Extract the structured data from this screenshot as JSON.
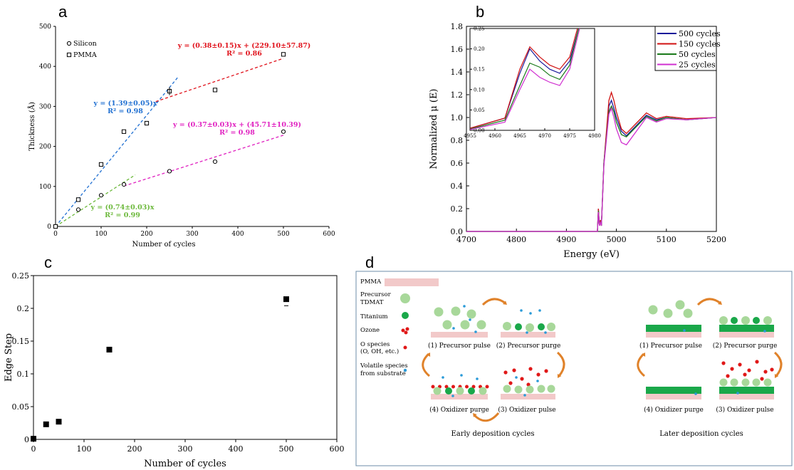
{
  "panel_labels": {
    "a": "a",
    "b": "b",
    "c": "c",
    "d": "d"
  },
  "chart_data": [
    {
      "panel": "a",
      "type": "scatter",
      "xlabel": "Number of cycles",
      "ylabel": "Thickness (Å)",
      "xlim": [
        0,
        600
      ],
      "ylim": [
        0,
        500
      ],
      "xticks": [
        0,
        100,
        200,
        300,
        400,
        500,
        600
      ],
      "yticks": [
        0,
        100,
        200,
        300,
        400,
        500
      ],
      "legend": {
        "placement": "top-left",
        "entries": [
          "Silicon",
          "PMMA"
        ]
      },
      "series": [
        {
          "name": "Silicon",
          "marker": "circle",
          "x": [
            0,
            50,
            100,
            150,
            250,
            350,
            500
          ],
          "y": [
            0,
            42,
            78,
            105,
            138,
            162,
            237
          ]
        },
        {
          "name": "PMMA",
          "marker": "square",
          "x": [
            0,
            50,
            100,
            150,
            200,
            250,
            350,
            500
          ],
          "y": [
            0,
            67,
            155,
            237,
            258,
            338,
            341,
            430
          ]
        }
      ],
      "fits": [
        {
          "label": "y = (1.39±0.05)x",
          "r2": "R² = 0.98",
          "color": "#1f6fd1",
          "x": [
            0,
            270
          ],
          "y": [
            0,
            375
          ]
        },
        {
          "label": "y = (0.38±0.15)x + (229.10±57.87)",
          "r2": "R² = 0.86",
          "color": "#e0101a",
          "x": [
            220,
            500
          ],
          "y": [
            312,
            420
          ]
        },
        {
          "label": "y = (0.37±0.03)x + (45.71±10.39)",
          "r2": "R² = 0.98",
          "color": "#e020c0",
          "x": [
            150,
            500
          ],
          "y": [
            101,
            228
          ]
        },
        {
          "label": "y = (0.74±0.03)x",
          "r2": "R² = 0.99",
          "color": "#6bb83a",
          "x": [
            0,
            175
          ],
          "y": [
            0,
            129
          ]
        }
      ]
    },
    {
      "panel": "b",
      "type": "line",
      "xlabel": "Energy (eV)",
      "ylabel": "Normalized μ (E)",
      "xlim": [
        4700,
        5200
      ],
      "ylim": [
        0,
        1.8
      ],
      "xticks": [
        4700,
        4800,
        4900,
        5000,
        5100,
        5200
      ],
      "yticks": [
        0.0,
        0.2,
        0.4,
        0.6,
        0.8,
        1.0,
        1.2,
        1.4,
        1.6,
        1.8
      ],
      "legend": {
        "placement": "top-right"
      },
      "series": [
        {
          "name": "500 cycles",
          "color": "#1a1a9a",
          "x": [
            4700,
            4950,
            4962,
            4964,
            4966,
            4968,
            4970,
            4975,
            4985,
            4990,
            4995,
            5000,
            5010,
            5020,
            5040,
            5060,
            5080,
            5100,
            5140,
            5200
          ],
          "y": [
            0,
            0,
            0,
            0.2,
            0.05,
            0.1,
            0.05,
            0.6,
            1.1,
            1.15,
            1.08,
            1.0,
            0.88,
            0.84,
            0.93,
            1.02,
            0.98,
            1.0,
            0.98,
            1.0
          ]
        },
        {
          "name": "150 cycles",
          "color": "#d01010",
          "x": [
            4700,
            4950,
            4962,
            4964,
            4966,
            4968,
            4970,
            4975,
            4985,
            4990,
            4995,
            5000,
            5010,
            5020,
            5040,
            5060,
            5080,
            5100,
            5140,
            5200
          ],
          "y": [
            0,
            0,
            0,
            0.2,
            0.05,
            0.1,
            0.05,
            0.6,
            1.15,
            1.22,
            1.15,
            1.05,
            0.9,
            0.86,
            0.95,
            1.04,
            0.99,
            1.01,
            0.99,
            1.0
          ]
        },
        {
          "name": "50 cycles",
          "color": "#1a7a1a",
          "x": [
            4700,
            4950,
            4962,
            4964,
            4966,
            4968,
            4970,
            4975,
            4985,
            4990,
            4995,
            5000,
            5010,
            5020,
            5040,
            5060,
            5080,
            5100,
            5140,
            5200
          ],
          "y": [
            0,
            0,
            0,
            0.18,
            0.05,
            0.08,
            0.05,
            0.6,
            1.05,
            1.1,
            1.05,
            0.96,
            0.85,
            0.83,
            0.92,
            1.01,
            0.97,
            1.0,
            0.98,
            1.0
          ]
        },
        {
          "name": "25 cycles",
          "color": "#d030d0",
          "x": [
            4700,
            4950,
            4962,
            4964,
            4966,
            4968,
            4970,
            4975,
            4985,
            4990,
            4995,
            5000,
            5010,
            5020,
            5040,
            5060,
            5080,
            5100,
            5140,
            5200
          ],
          "y": [
            0,
            0,
            0,
            0.17,
            0.05,
            0.08,
            0.05,
            0.58,
            1.03,
            1.08,
            1.0,
            0.9,
            0.78,
            0.76,
            0.88,
            1.0,
            0.96,
            0.99,
            0.98,
            1.0
          ]
        }
      ],
      "inset": {
        "xlim": [
          4955,
          4980
        ],
        "ylim": [
          0,
          0.25
        ],
        "xticks": [
          4955,
          4960,
          4965,
          4970,
          4975,
          4980
        ],
        "yticks": [
          0.0,
          0.05,
          0.1,
          0.15,
          0.2,
          0.25
        ],
        "series": [
          {
            "name": "500 cycles",
            "x": [
              4955,
              4962,
              4965,
              4967,
              4969,
              4971,
              4973,
              4975,
              4977
            ],
            "y": [
              0.005,
              0.03,
              0.14,
              0.2,
              0.17,
              0.15,
              0.14,
              0.17,
              0.26
            ]
          },
          {
            "name": "150 cycles",
            "x": [
              4955,
              4962,
              4965,
              4967,
              4969,
              4971,
              4973,
              4975,
              4977
            ],
            "y": [
              0.005,
              0.03,
              0.15,
              0.205,
              0.18,
              0.16,
              0.15,
              0.18,
              0.27
            ]
          },
          {
            "name": "50 cycles",
            "x": [
              4955,
              4962,
              4965,
              4967,
              4969,
              4971,
              4973,
              4975,
              4977
            ],
            "y": [
              0.003,
              0.025,
              0.11,
              0.165,
              0.155,
              0.135,
              0.125,
              0.16,
              0.26
            ]
          },
          {
            "name": "25 cycles",
            "x": [
              4955,
              4962,
              4965,
              4967,
              4969,
              4971,
              4973,
              4975,
              4977
            ],
            "y": [
              0.002,
              0.02,
              0.1,
              0.15,
              0.13,
              0.118,
              0.11,
              0.15,
              0.25
            ]
          }
        ]
      }
    },
    {
      "panel": "c",
      "type": "scatter",
      "xlabel": "Number of cycles",
      "ylabel": "Edge Step",
      "xlim": [
        0,
        600
      ],
      "ylim": [
        0,
        0.25
      ],
      "xticks": [
        0,
        100,
        200,
        300,
        400,
        500,
        600
      ],
      "yticks": [
        0,
        0.05,
        0.1,
        0.15,
        0.2,
        0.25
      ],
      "ytick_labels": [
        "0",
        "0.05",
        "0.1",
        "0.15",
        "0.2",
        "0.25"
      ],
      "series": [
        {
          "x": [
            0,
            25,
            50,
            150,
            500
          ],
          "y": [
            0.001,
            0.023,
            0.027,
            0.137,
            0.214
          ]
        }
      ]
    }
  ],
  "diagram": {
    "legend": {
      "pmma": "PMMA",
      "precursor": "Precursor TDMAT",
      "titanium": "Titanium",
      "ozone": "Ozone",
      "o_species": "O species (O, OH, etc.)",
      "volatile": "Volatile species from substrate"
    },
    "early": {
      "title": "Early deposition cycles",
      "step1": "(1) Precursor pulse",
      "step2": "(2) Precursor purge",
      "step3": "(3) Oxidizer pulse",
      "step4": "(4) Oxidizer purge"
    },
    "later": {
      "title": "Later deposition cycles",
      "step1": "(1) Precursor pulse",
      "step2": "(2) Precursor purge",
      "step3": "(3) Oxidizer pulse",
      "step4": "(4) Oxidizer purge"
    },
    "colors": {
      "pmma": "#f2c9c9",
      "precursor": "#a8d89a",
      "titanium": "#1aa84a",
      "ozone": "#e01818",
      "volatile": "#2a9ad8",
      "arrow": "#e0822a"
    }
  }
}
